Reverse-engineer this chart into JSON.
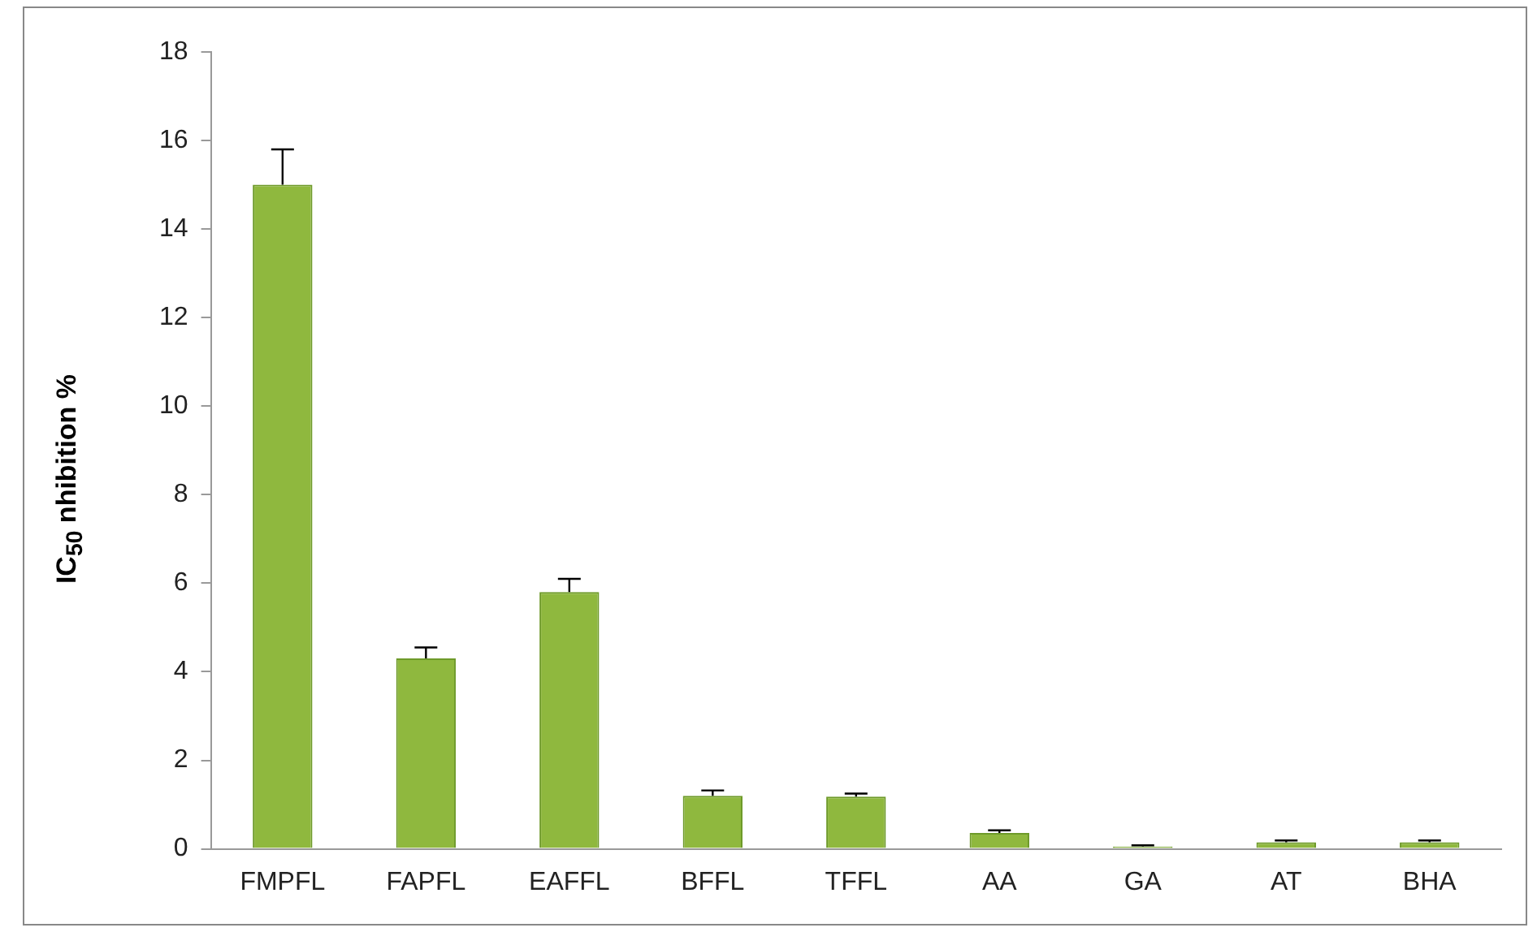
{
  "chart_data": {
    "type": "bar",
    "ylabel": "IC$_{50}$ nhibition %",
    "categories": [
      "FMPFL",
      "FAPFL",
      "EAFFL",
      "BFFL",
      "TFFL",
      "AA",
      "GA",
      "AT",
      "BHA"
    ],
    "series": [
      {
        "color": "#8fb83e",
        "values": [
          15.0,
          4.3,
          5.8,
          1.2,
          1.18,
          0.36,
          0.05,
          0.15,
          0.15
        ],
        "errors": [
          [
            15.0,
            15.8
          ],
          [
            4.3,
            4.55
          ],
          [
            5.8,
            6.1
          ],
          [
            1.2,
            1.32
          ],
          [
            1.18,
            1.25
          ],
          [
            0.36,
            0.42
          ],
          [
            0.05,
            0.08
          ],
          [
            0.15,
            0.19
          ],
          [
            0.15,
            0.19
          ]
        ]
      }
    ],
    "ylim": [
      0,
      18
    ],
    "yticks": [
      0,
      2,
      4,
      6,
      8,
      10,
      12,
      14,
      16,
      18
    ],
    "grid": false,
    "legend": false
  }
}
